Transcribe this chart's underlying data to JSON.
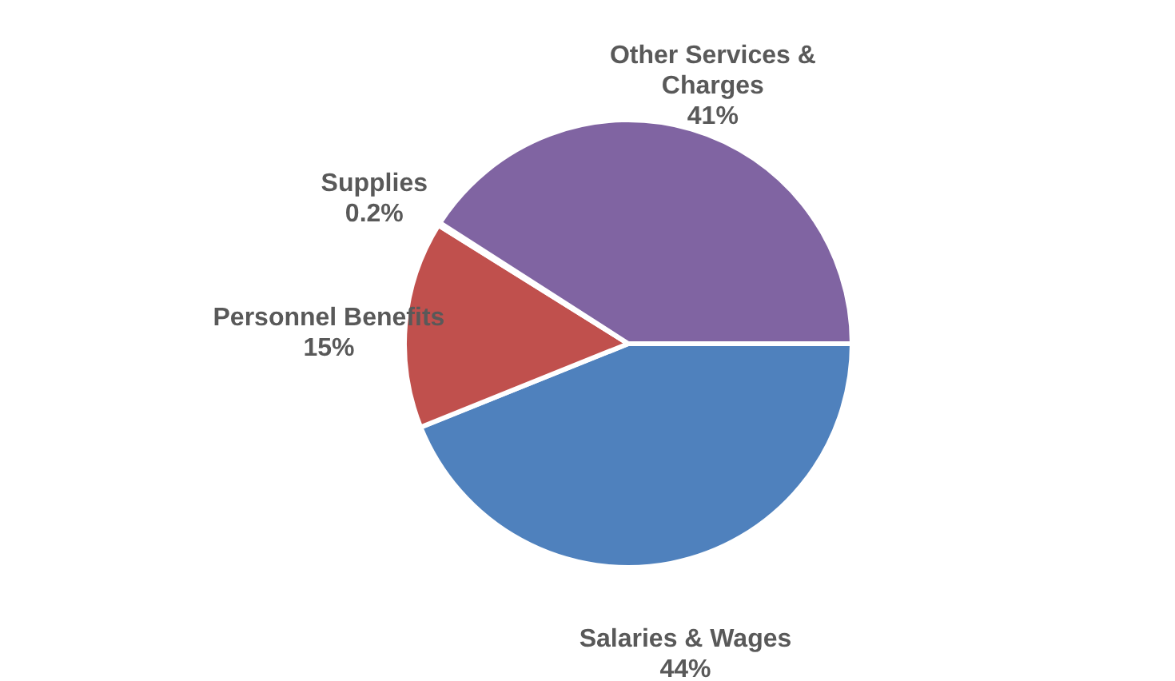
{
  "chart_data": {
    "type": "pie",
    "categories": [
      "Salaries & Wages",
      "Personnel Benefits",
      "Supplies",
      "Other Services & Charges"
    ],
    "values": [
      44,
      15,
      0.2,
      41
    ],
    "colors": [
      "#4f81bd",
      "#c0504d",
      "#9bbb59",
      "#8064a2"
    ],
    "value_labels": [
      "44%",
      "15%",
      "0.2%",
      "41%"
    ]
  }
}
